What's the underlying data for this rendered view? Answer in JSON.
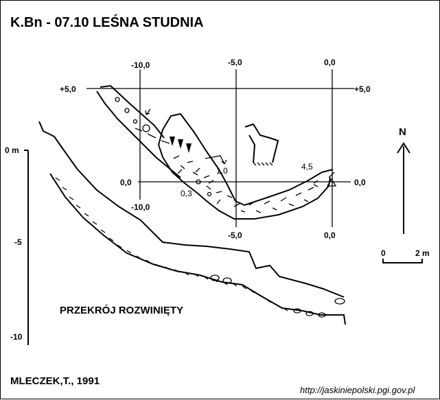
{
  "title": "K.Bn - 07.10  LEŚNA STUDNIA",
  "grid": {
    "top_labels": [
      "-10,0",
      "-5,0",
      "0,0"
    ],
    "bottom_labels": [
      "-10,0",
      "-5,0",
      "0,0"
    ],
    "left_labels": [
      "+5,0",
      "0,0"
    ],
    "right_labels": [
      "+5,0",
      "0,0"
    ]
  },
  "plan_annotations": {
    "a": "1,0",
    "b": "0,3",
    "c": "4,5"
  },
  "north_label": "N",
  "scale": {
    "zero": "0",
    "end": "2 m"
  },
  "depth_axis": {
    "labels": [
      "0 m",
      "-5",
      "-10"
    ]
  },
  "section_label": "PRZEKRÓJ ROZWINIĘTY",
  "author": "MLECZEK,T., 1991",
  "source_url": "http://jaskiniepolski.pgi.gov.pl"
}
